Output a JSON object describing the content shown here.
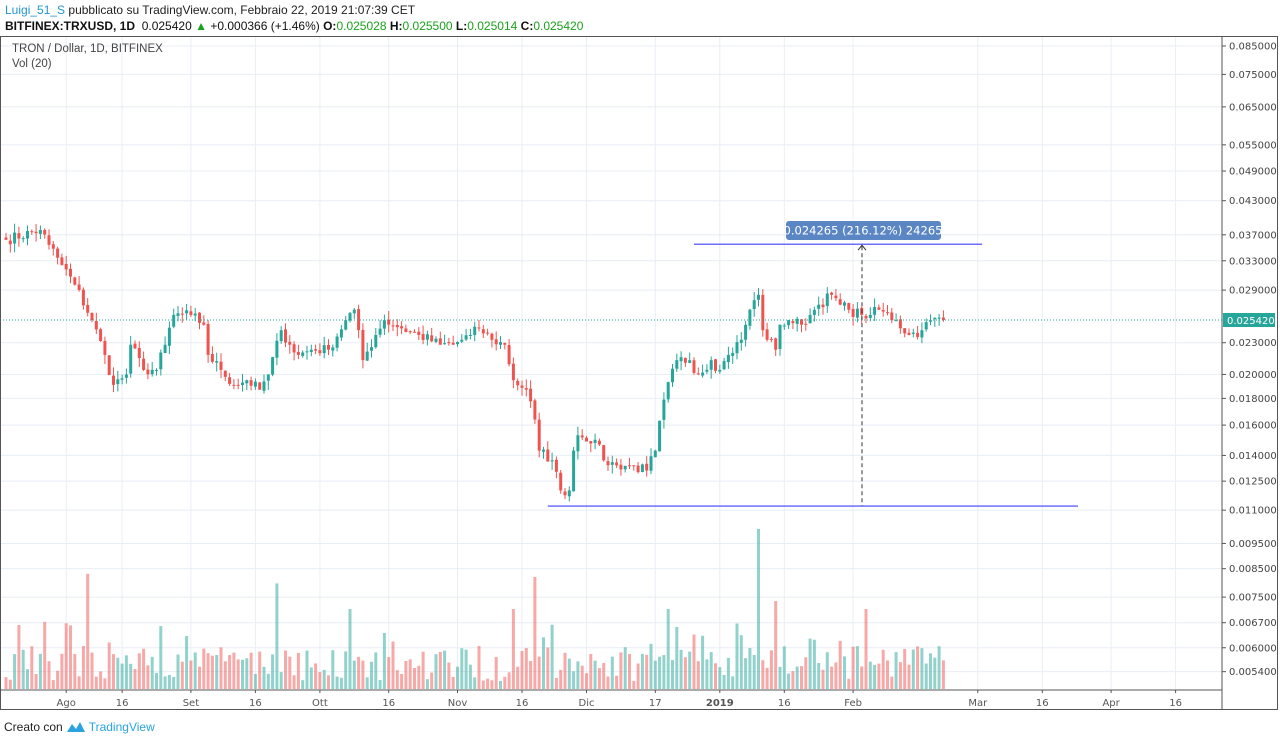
{
  "header": {
    "user": "Luigi_51_S",
    "published": " pubblicato su TradingView.com, Febbraio 22, 2019 21:07:39 CET",
    "symbol": "BITFINEX:TRXUSD, 1D",
    "last": "0.025420",
    "change": "+0.000366 (+1.46%)",
    "o_label": "O:",
    "o": "0.025028",
    "h_label": "H:",
    "h": "0.025500",
    "l_label": "L:",
    "l": "0.025014",
    "c_label": "C:",
    "c": "0.025420"
  },
  "legend": {
    "title": "TRON / Dollar, 1D, BITFINEX",
    "volume": "Vol (20)"
  },
  "footer": {
    "created": "Creato con",
    "brand": "TradingView"
  },
  "colors": {
    "up": "#26a69a",
    "down": "#ef5350",
    "line": "#3f3fff",
    "measure": "#5b86c4",
    "price_tag": "#26a69a"
  },
  "chart_data": {
    "type": "candlestick",
    "title": "TRON / Dollar, 1D, BITFINEX",
    "scale": "log",
    "ylim": [
      0.0049,
      0.088
    ],
    "start_date": "2018-07-18",
    "y_ticks": [
      "0.085000",
      "0.075000",
      "0.065000",
      "0.055000",
      "0.049000",
      "0.043000",
      "0.037000",
      "0.033000",
      "0.029000",
      "0.023000",
      "0.020000",
      "0.018000",
      "0.016000",
      "0.014000",
      "0.012500",
      "0.011000",
      "0.009500",
      "0.008500",
      "0.007500",
      "0.006700",
      "0.006000",
      "0.005400"
    ],
    "x_ticks": [
      {
        "label": "Ago",
        "day": 14
      },
      {
        "label": "16",
        "day": 27
      },
      {
        "label": "Set",
        "day": 43
      },
      {
        "label": "16",
        "day": 58
      },
      {
        "label": "Ott",
        "day": 73
      },
      {
        "label": "16",
        "day": 89
      },
      {
        "label": "Nov",
        "day": 105
      },
      {
        "label": "16",
        "day": 120
      },
      {
        "label": "Dic",
        "day": 135
      },
      {
        "label": "17",
        "day": 151
      },
      {
        "label": "2019",
        "day": 166
      },
      {
        "label": "16",
        "day": 181
      },
      {
        "label": "Feb",
        "day": 197
      },
      {
        "label": "Mar",
        "day": 226
      },
      {
        "label": "16",
        "day": 241
      },
      {
        "label": "Apr",
        "day": 257
      },
      {
        "label": "16",
        "day": 272
      }
    ],
    "close_waypoints": [
      [
        0,
        0.0362
      ],
      [
        8,
        0.0378
      ],
      [
        10,
        0.0354
      ],
      [
        13,
        0.0324
      ],
      [
        16,
        0.0297
      ],
      [
        20,
        0.0254
      ],
      [
        23,
        0.0218
      ],
      [
        25,
        0.0191
      ],
      [
        28,
        0.02
      ],
      [
        29,
        0.0228
      ],
      [
        32,
        0.0204
      ],
      [
        35,
        0.0204
      ],
      [
        37,
        0.0228
      ],
      [
        39,
        0.026
      ],
      [
        43,
        0.026
      ],
      [
        46,
        0.0249
      ],
      [
        47,
        0.0218
      ],
      [
        50,
        0.0204
      ],
      [
        53,
        0.0191
      ],
      [
        56,
        0.0195
      ],
      [
        59,
        0.0187
      ],
      [
        61,
        0.02
      ],
      [
        64,
        0.0243
      ],
      [
        66,
        0.0228
      ],
      [
        68,
        0.0218
      ],
      [
        71,
        0.0223
      ],
      [
        75,
        0.0223
      ],
      [
        79,
        0.0254
      ],
      [
        81,
        0.0266
      ],
      [
        83,
        0.0213
      ],
      [
        86,
        0.0238
      ],
      [
        88,
        0.0254
      ],
      [
        92,
        0.0245
      ],
      [
        96,
        0.0238
      ],
      [
        101,
        0.0228
      ],
      [
        104,
        0.0228
      ],
      [
        108,
        0.0238
      ],
      [
        110,
        0.0245
      ],
      [
        113,
        0.0233
      ],
      [
        116,
        0.0228
      ],
      [
        118,
        0.0195
      ],
      [
        121,
        0.0187
      ],
      [
        123,
        0.0164
      ],
      [
        124,
        0.0143
      ],
      [
        127,
        0.0137
      ],
      [
        129,
        0.012
      ],
      [
        131,
        0.012
      ],
      [
        132,
        0.0143
      ],
      [
        133,
        0.0153
      ],
      [
        137,
        0.015
      ],
      [
        139,
        0.0137
      ],
      [
        142,
        0.0134
      ],
      [
        145,
        0.0134
      ],
      [
        149,
        0.0131
      ],
      [
        151,
        0.0143
      ],
      [
        153,
        0.0179
      ],
      [
        156,
        0.0213
      ],
      [
        159,
        0.0213
      ],
      [
        161,
        0.02
      ],
      [
        164,
        0.0213
      ],
      [
        166,
        0.0204
      ],
      [
        168,
        0.0218
      ],
      [
        171,
        0.0233
      ],
      [
        173,
        0.0266
      ],
      [
        175,
        0.0284
      ],
      [
        176,
        0.0243
      ],
      [
        179,
        0.0223
      ],
      [
        180,
        0.0249
      ],
      [
        182,
        0.0254
      ],
      [
        185,
        0.0249
      ],
      [
        187,
        0.026
      ],
      [
        189,
        0.0272
      ],
      [
        192,
        0.0284
      ],
      [
        194,
        0.0272
      ],
      [
        196,
        0.0266
      ],
      [
        199,
        0.026
      ],
      [
        201,
        0.026
      ],
      [
        203,
        0.0266
      ],
      [
        207,
        0.0254
      ],
      [
        210,
        0.0238
      ],
      [
        213,
        0.0243
      ],
      [
        215,
        0.0254
      ],
      [
        218,
        0.02542
      ]
    ],
    "volume_spikes": [
      [
        3,
        0.4
      ],
      [
        9,
        0.42
      ],
      [
        19,
        0.72
      ],
      [
        63,
        0.66
      ],
      [
        80,
        0.5
      ],
      [
        118,
        0.5
      ],
      [
        123,
        0.7
      ],
      [
        154,
        0.5
      ],
      [
        175,
        1.0
      ],
      [
        179,
        0.55
      ],
      [
        200,
        0.5
      ]
    ],
    "current_price": "0.025420",
    "measure": {
      "label": "0.024265 (216.12%) 24265",
      "from": 0.0112,
      "to": 0.0355,
      "from_day": 126,
      "to_day": 225,
      "top_from_day": 160,
      "top_to_day": 227,
      "at_day": 199
    }
  }
}
